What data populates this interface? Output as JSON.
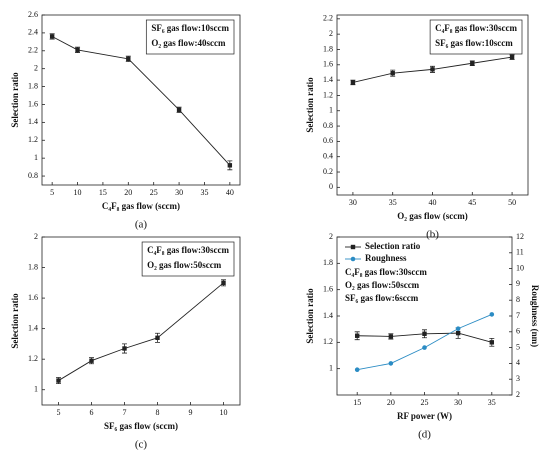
{
  "chart_data": [
    {
      "type": "line",
      "caption": "(a)",
      "x_label": "C₄F₈ gas flow (sccm)",
      "y_label": "Selection ratio",
      "annotations": [
        "SF₆ gas flow:10sccm",
        "O₂ gas flow:40sccm"
      ],
      "x": [
        5,
        10,
        20,
        30,
        40
      ],
      "xlim": [
        3,
        42
      ],
      "xticks": [
        5,
        10,
        15,
        20,
        25,
        30,
        35,
        40
      ],
      "ylim": [
        0.7,
        2.6
      ],
      "yticks": [
        0.8,
        1.0,
        1.2,
        1.4,
        1.6,
        1.8,
        2.0,
        2.2,
        2.4,
        2.6
      ],
      "series": [
        {
          "name": "Selection ratio",
          "color": "#222222",
          "marker": "square",
          "values": [
            2.36,
            2.21,
            2.11,
            1.54,
            0.92
          ],
          "errors": [
            0.03,
            0.03,
            0.03,
            0.03,
            0.05
          ]
        }
      ]
    },
    {
      "type": "line",
      "caption": "(b)",
      "x_label": "O₂ gas flow (sccm)",
      "y_label": "Selection ratio",
      "annotations": [
        "C₄F₈ gas flow:30sccm",
        "SF₆ gas flow:10sccm"
      ],
      "x": [
        30,
        35,
        40,
        45,
        50
      ],
      "xlim": [
        28,
        52
      ],
      "xticks": [
        30,
        35,
        40,
        45,
        50
      ],
      "ylim": [
        -0.1,
        2.25
      ],
      "yticks": [
        0.0,
        0.2,
        0.4,
        0.6,
        0.8,
        1.0,
        1.2,
        1.4,
        1.6,
        1.8,
        2.0,
        2.2
      ],
      "series": [
        {
          "name": "Selection ratio",
          "color": "#222222",
          "marker": "square",
          "values": [
            1.37,
            1.49,
            1.54,
            1.62,
            1.7
          ],
          "errors": [
            0.03,
            0.04,
            0.04,
            0.03,
            0.03
          ]
        }
      ]
    },
    {
      "type": "line",
      "caption": "(c)",
      "x_label": "SF₆ gas flow (sccm)",
      "y_label": "Selection ratio",
      "annotations": [
        "C₄F₈ gas flow:30sccm",
        "O₂ gas flow:50sccm"
      ],
      "x": [
        5,
        6,
        7,
        8,
        10
      ],
      "xlim": [
        4.5,
        10.5
      ],
      "xticks": [
        5,
        6,
        7,
        8,
        9,
        10
      ],
      "ylim": [
        0.9,
        2.0
      ],
      "yticks": [
        1.0,
        1.2,
        1.4,
        1.6,
        1.8,
        2.0
      ],
      "series": [
        {
          "name": "Selection ratio",
          "color": "#222222",
          "marker": "square",
          "values": [
            1.06,
            1.19,
            1.27,
            1.34,
            1.7
          ],
          "errors": [
            0.02,
            0.02,
            0.03,
            0.03,
            0.02
          ]
        }
      ]
    },
    {
      "type": "line",
      "caption": "(d)",
      "x_label": "RF power (W)",
      "y_label": "Selection ratio",
      "y2_label": "Roughness (nm)",
      "annotations": [
        "C₄F₈ gas flow:30sccm",
        "O₂ gas flow:50sccm",
        "SF₆ gas flow:6sccm"
      ],
      "x": [
        15,
        20,
        25,
        30,
        35
      ],
      "xlim": [
        12,
        38
      ],
      "xticks": [
        15,
        20,
        25,
        30,
        35
      ],
      "ylim": [
        0.8,
        2.0
      ],
      "yticks": [
        1.0,
        1.2,
        1.4,
        1.6,
        1.8,
        2.0
      ],
      "y2lim": [
        2,
        12
      ],
      "y2ticks": [
        2,
        3,
        4,
        5,
        6,
        7,
        8,
        9,
        10,
        11,
        12
      ],
      "series": [
        {
          "name": "Selection ratio",
          "color": "#222222",
          "marker": "square",
          "values": [
            1.25,
            1.245,
            1.265,
            1.27,
            1.2
          ],
          "errors": [
            0.03,
            0.02,
            0.03,
            0.04,
            0.03
          ]
        },
        {
          "name": "Roughness",
          "color": "#2b8cc4",
          "marker": "circle",
          "axis": "y2",
          "values": [
            3.6,
            4.0,
            5.0,
            6.2,
            7.1
          ]
        }
      ]
    }
  ]
}
